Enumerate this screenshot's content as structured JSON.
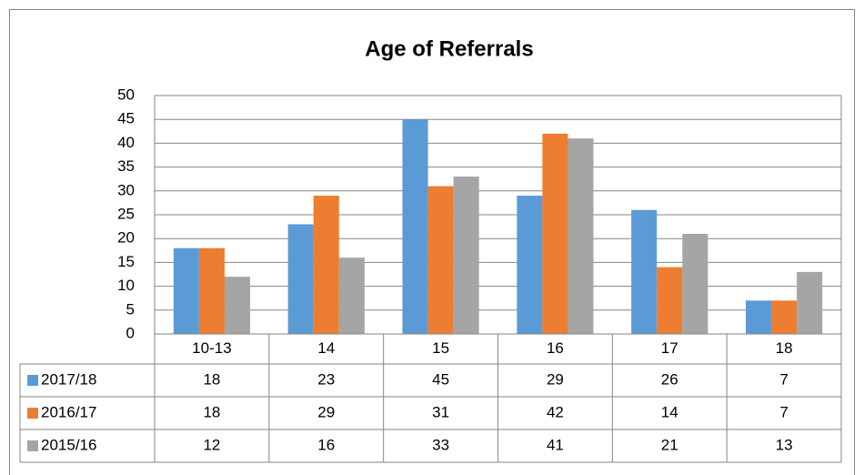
{
  "chart_data": {
    "type": "bar",
    "title": "Age of Referrals",
    "categories": [
      "10-13",
      "14",
      "15",
      "16",
      "17",
      "18"
    ],
    "series": [
      {
        "name": "2017/18",
        "color": "#5b9bd5",
        "values": [
          18,
          23,
          45,
          29,
          26,
          7
        ]
      },
      {
        "name": "2016/17",
        "color": "#ed7d31",
        "values": [
          18,
          29,
          31,
          42,
          14,
          7
        ]
      },
      {
        "name": "2015/16",
        "color": "#a5a5a5",
        "values": [
          12,
          16,
          33,
          41,
          21,
          13
        ]
      }
    ],
    "ylim": [
      0,
      50
    ],
    "yticks": [
      0,
      5,
      10,
      15,
      20,
      25,
      30,
      35,
      40,
      45,
      50
    ],
    "grid": true,
    "data_table": true
  }
}
